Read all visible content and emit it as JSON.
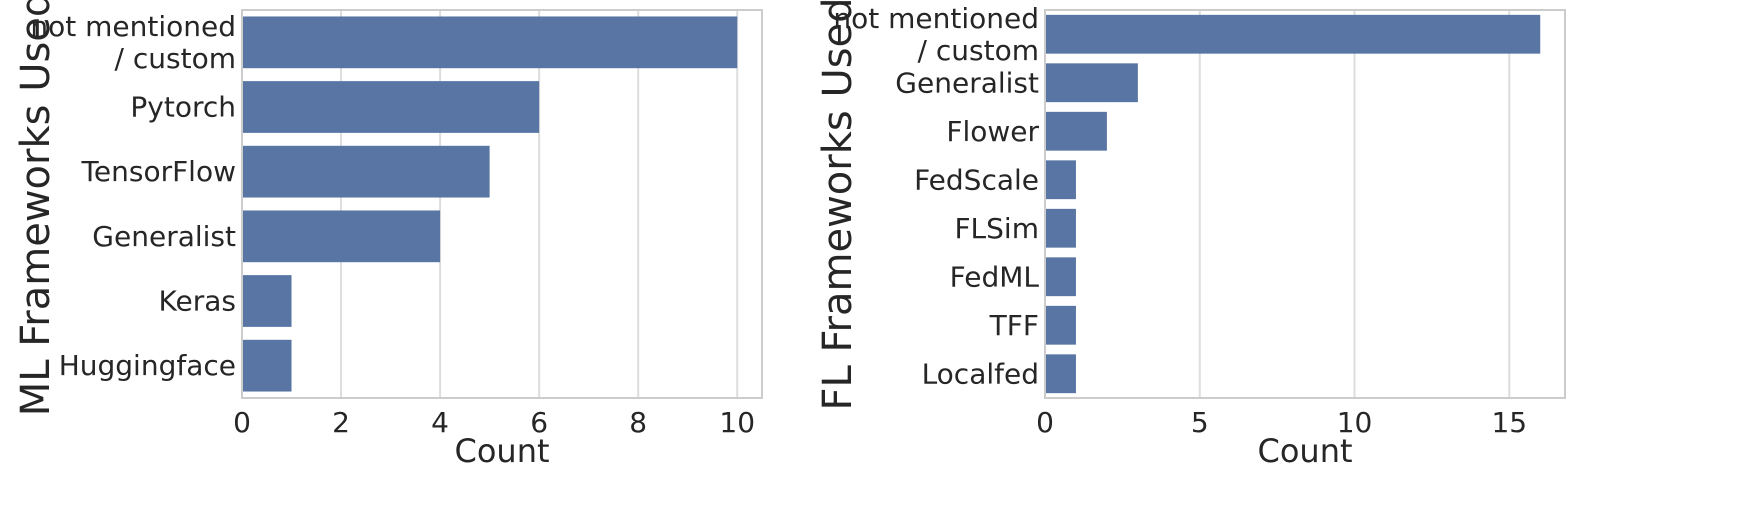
{
  "colors": {
    "bar": "#5875a4",
    "grid": "#dddddd",
    "frame": "#cccccc",
    "text": "#262626"
  },
  "chart_data": [
    {
      "type": "bar",
      "orientation": "horizontal",
      "categories": [
        [
          "not mentioned",
          "/ custom"
        ],
        [
          "Pytorch"
        ],
        [
          "TensorFlow"
        ],
        [
          "Generalist"
        ],
        [
          "Keras"
        ],
        [
          "Huggingface"
        ]
      ],
      "values": [
        10,
        6,
        5,
        4,
        1,
        1
      ],
      "xlabel": "Count",
      "ylabel": "ML Frameworks Used",
      "xlim": [
        0,
        10.5
      ],
      "xticks": [
        0,
        2,
        4,
        6,
        8,
        10
      ],
      "grid": true
    },
    {
      "type": "bar",
      "orientation": "horizontal",
      "categories": [
        [
          "not mentioned",
          "/ custom"
        ],
        [
          "Generalist"
        ],
        [
          "Flower"
        ],
        [
          "FedScale"
        ],
        [
          "FLSim"
        ],
        [
          "FedML"
        ],
        [
          "TFF"
        ],
        [
          "Localfed"
        ]
      ],
      "values": [
        16,
        3,
        2,
        1,
        1,
        1,
        1,
        1
      ],
      "xlabel": "Count",
      "ylabel": "FL Frameworks Used",
      "xlim": [
        0,
        16.8
      ],
      "xticks": [
        0,
        5,
        10,
        15
      ],
      "grid": true
    }
  ]
}
